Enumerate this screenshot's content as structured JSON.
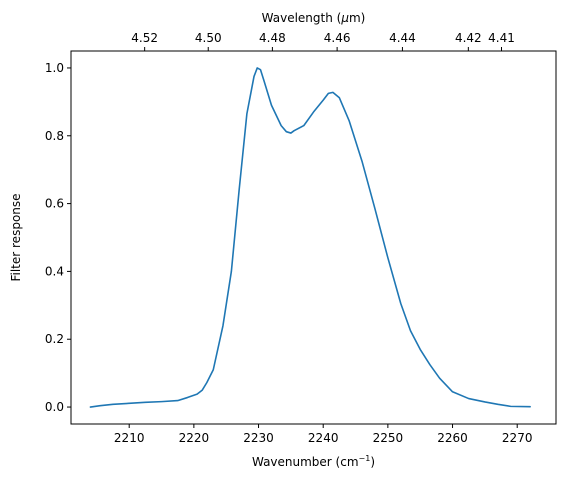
{
  "chart_data": {
    "type": "line",
    "title": "",
    "xlabel": "Wavenumber (cm",
    "xlabel_sup": "−1",
    "xlabel_tail": ")",
    "ylabel": "Filter response",
    "top_xlabel": "Wavelength (",
    "top_xlabel_mu": "μ",
    "top_xlabel_tail": "m)",
    "xlim": [
      2201,
      2276
    ],
    "ylim": [
      -0.05,
      1.05
    ],
    "grid": false,
    "x_ticks": [
      2210,
      2220,
      2230,
      2240,
      2250,
      2260,
      2270
    ],
    "y_ticks": [
      0.0,
      0.2,
      0.4,
      0.6,
      0.8,
      1.0
    ],
    "x_tick_labels": [
      "2210",
      "2220",
      "2230",
      "2240",
      "2250",
      "2260",
      "2270"
    ],
    "y_tick_labels": [
      "0.0",
      "0.2",
      "0.4",
      "0.6",
      "0.8",
      "1.0"
    ],
    "top_x_ticks": [
      4.52,
      4.5,
      4.48,
      4.46,
      4.44,
      4.42,
      4.41
    ],
    "top_x_tick_labels": [
      "4.52",
      "4.50",
      "4.48",
      "4.46",
      "4.44",
      "4.42",
      "4.41"
    ],
    "series": [
      {
        "color": "#1f77b4",
        "x": [
          2204,
          2205.5,
          2207.5,
          2210,
          2212.5,
          2215,
          2217.5,
          2219,
          2220.5,
          2221.3,
          2222,
          2223,
          2224.5,
          2225.8,
          2227,
          2228.2,
          2229.3,
          2229.8,
          2230.3,
          2230.8,
          2232,
          2233.5,
          2234.3,
          2235,
          2235.5,
          2237,
          2238.5,
          2240,
          2240.8,
          2241.5,
          2242.5,
          2244,
          2246,
          2248,
          2250,
          2252,
          2253.5,
          2255,
          2256.5,
          2258,
          2260,
          2262.5,
          2265,
          2267,
          2269,
          2272
        ],
        "y": [
          0.0,
          0.004,
          0.008,
          0.011,
          0.014,
          0.016,
          0.019,
          0.028,
          0.038,
          0.05,
          0.072,
          0.11,
          0.24,
          0.4,
          0.64,
          0.865,
          0.975,
          1.0,
          0.995,
          0.965,
          0.89,
          0.83,
          0.812,
          0.808,
          0.815,
          0.83,
          0.87,
          0.905,
          0.925,
          0.928,
          0.912,
          0.845,
          0.725,
          0.585,
          0.44,
          0.305,
          0.225,
          0.17,
          0.125,
          0.085,
          0.045,
          0.025,
          0.015,
          0.008,
          0.002,
          0.001
        ]
      }
    ]
  }
}
